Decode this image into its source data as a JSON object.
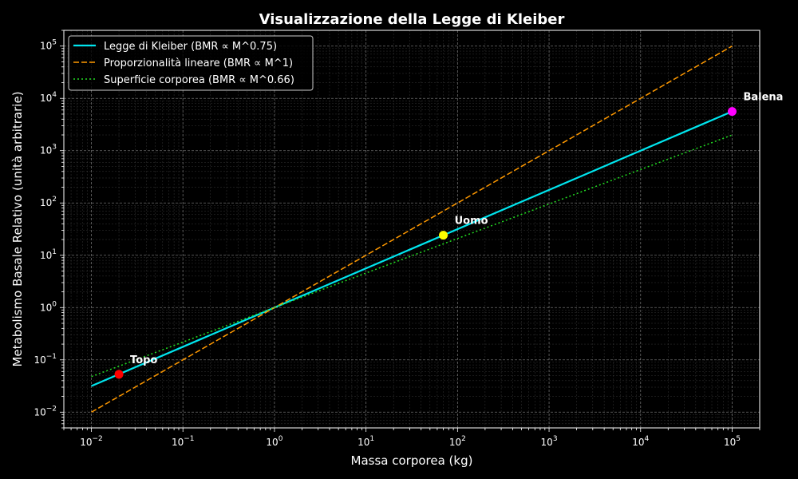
{
  "chart_data": {
    "type": "line",
    "title": "Visualizzazione della Legge di Kleiber",
    "xlabel": "Massa corporea (kg)",
    "ylabel": "Metabolismo Basale Relativo (unità arbitrarie)",
    "xscale": "log",
    "yscale": "log",
    "xlim": [
      0.005,
      200000
    ],
    "ylim": [
      0.005,
      200000
    ],
    "x_ticks": [
      {
        "base": "10",
        "exp": "−2"
      },
      {
        "base": "10",
        "exp": "−1"
      },
      {
        "base": "10",
        "exp": "0"
      },
      {
        "base": "10",
        "exp": "1"
      },
      {
        "base": "10",
        "exp": "2"
      },
      {
        "base": "10",
        "exp": "3"
      },
      {
        "base": "10",
        "exp": "4"
      },
      {
        "base": "10",
        "exp": "5"
      }
    ],
    "y_ticks": [
      {
        "base": "10",
        "exp": "−2"
      },
      {
        "base": "10",
        "exp": "−1"
      },
      {
        "base": "10",
        "exp": "0"
      },
      {
        "base": "10",
        "exp": "1"
      },
      {
        "base": "10",
        "exp": "2"
      },
      {
        "base": "10",
        "exp": "3"
      },
      {
        "base": "10",
        "exp": "4"
      },
      {
        "base": "10",
        "exp": "5"
      }
    ],
    "grid": true,
    "legend_position": "top-left",
    "series": [
      {
        "name": "Legge di Kleiber (BMR ∝ M^0.75)",
        "color": "#00e5ee",
        "style": "solid",
        "exponent": 0.75,
        "x": [
          0.01,
          100000
        ],
        "y": [
          0.0316,
          5623
        ]
      },
      {
        "name": "Proporzionalità lineare (BMR ∝ M^1)",
        "color": "#ff9900",
        "style": "dashed",
        "exponent": 1.0,
        "x": [
          0.01,
          100000
        ],
        "y": [
          0.01,
          100000
        ]
      },
      {
        "name": "Superficie corporea (BMR ∝ M^0.66)",
        "color": "#22dd22",
        "style": "dotted",
        "exponent": 0.66,
        "x": [
          0.01,
          100000
        ],
        "y": [
          0.0479,
          1995
        ]
      }
    ],
    "points": [
      {
        "label": "Topo",
        "x": 0.02,
        "y": 0.053,
        "color": "#ff0000"
      },
      {
        "label": "Uomo",
        "x": 70,
        "y": 24.2,
        "color": "#ffff00"
      },
      {
        "label": "Balena",
        "x": 100000,
        "y": 5623,
        "color": "#ff00ff"
      }
    ]
  }
}
